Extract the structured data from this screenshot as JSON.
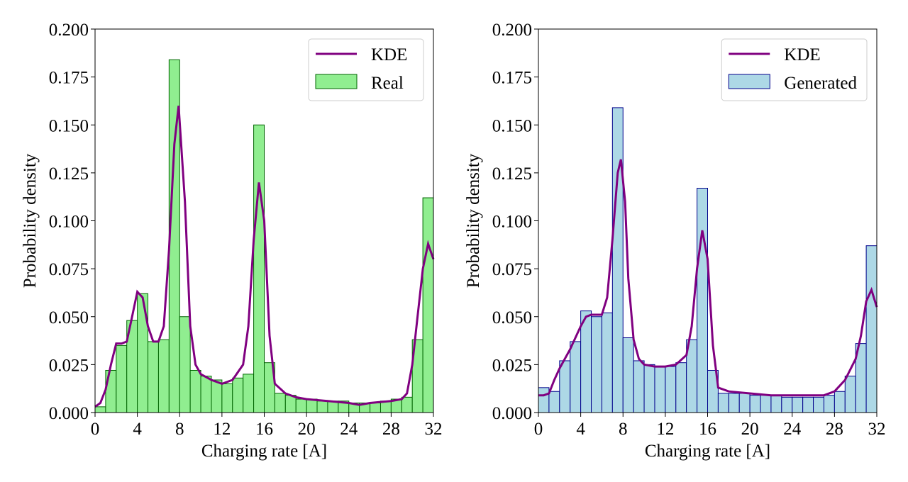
{
  "chart_data": [
    {
      "type": "histogram",
      "xlabel": "Charging rate [A]",
      "ylabel": "Probability density",
      "xlim": [
        0,
        32
      ],
      "ylim": [
        0,
        0.2
      ],
      "xticks": [
        0,
        4,
        8,
        12,
        16,
        20,
        24,
        28,
        32
      ],
      "yticks": [
        {
          "value": 0,
          "label": "0.000"
        },
        {
          "value": 0.025,
          "label": "0.025"
        },
        {
          "value": 0.05,
          "label": "0.050"
        },
        {
          "value": 0.075,
          "label": "0.075"
        },
        {
          "value": 0.1,
          "label": "0.100"
        },
        {
          "value": 0.125,
          "label": "0.125"
        },
        {
          "value": 0.15,
          "label": "0.150"
        },
        {
          "value": 0.175,
          "label": "0.175"
        },
        {
          "value": 0.2,
          "label": "0.200"
        }
      ],
      "legend": "upper right",
      "histogram": {
        "name": "Real",
        "color": "#90ee90",
        "edgecolor": "#006400",
        "bins": [
          0,
          1,
          2,
          3,
          4,
          5,
          6,
          7,
          8,
          9,
          10,
          11,
          12,
          13,
          14,
          15,
          16,
          17,
          18,
          19,
          20,
          21,
          22,
          23,
          24,
          25,
          26,
          27,
          28,
          29,
          30,
          31,
          32
        ],
        "values": [
          0.003,
          0.022,
          0.035,
          0.048,
          0.062,
          0.037,
          0.038,
          0.184,
          0.05,
          0.022,
          0.019,
          0.017,
          0.015,
          0.018,
          0.02,
          0.15,
          0.026,
          0.01,
          0.009,
          0.007,
          0.007,
          0.006,
          0.006,
          0.006,
          0.005,
          0.005,
          0.005,
          0.006,
          0.007,
          0.008,
          0.038,
          0.112
        ]
      },
      "kde": {
        "name": "KDE",
        "color": "#800080",
        "x": [
          0,
          0.5,
          1,
          1.5,
          2,
          2.5,
          3,
          3.5,
          4,
          4.5,
          5,
          5.5,
          6,
          6.5,
          7,
          7.5,
          7.9,
          8.5,
          9,
          9.5,
          10,
          11,
          12,
          13,
          14,
          14.5,
          15,
          15.5,
          16,
          16.5,
          17,
          18,
          19,
          20,
          22,
          24,
          25,
          26,
          28,
          29,
          29.5,
          30,
          30.5,
          31,
          31.5,
          32
        ],
        "values": [
          0.003,
          0.005,
          0.012,
          0.025,
          0.036,
          0.036,
          0.037,
          0.05,
          0.063,
          0.06,
          0.045,
          0.037,
          0.037,
          0.045,
          0.085,
          0.14,
          0.16,
          0.11,
          0.045,
          0.025,
          0.02,
          0.017,
          0.015,
          0.017,
          0.025,
          0.045,
          0.09,
          0.12,
          0.1,
          0.04,
          0.015,
          0.01,
          0.008,
          0.007,
          0.006,
          0.005,
          0.004,
          0.005,
          0.006,
          0.007,
          0.01,
          0.025,
          0.05,
          0.075,
          0.088,
          0.08
        ]
      }
    },
    {
      "type": "histogram",
      "xlabel": "Charging rate [A]",
      "ylabel": "Probability density",
      "xlim": [
        0,
        32
      ],
      "ylim": [
        0,
        0.2
      ],
      "xticks": [
        0,
        4,
        8,
        12,
        16,
        20,
        24,
        28,
        32
      ],
      "yticks": [
        {
          "value": 0,
          "label": "0.000"
        },
        {
          "value": 0.025,
          "label": "0.025"
        },
        {
          "value": 0.05,
          "label": "0.050"
        },
        {
          "value": 0.075,
          "label": "0.075"
        },
        {
          "value": 0.1,
          "label": "0.100"
        },
        {
          "value": 0.125,
          "label": "0.125"
        },
        {
          "value": 0.15,
          "label": "0.150"
        },
        {
          "value": 0.175,
          "label": "0.175"
        },
        {
          "value": 0.2,
          "label": "0.200"
        }
      ],
      "legend": "upper right",
      "histogram": {
        "name": "Generated",
        "color": "#add8e6",
        "edgecolor": "#00008b",
        "bins": [
          0,
          1,
          2,
          3,
          4,
          5,
          6,
          7,
          8,
          9,
          10,
          11,
          12,
          13,
          14,
          15,
          16,
          17,
          18,
          19,
          20,
          21,
          22,
          23,
          24,
          25,
          26,
          27,
          28,
          29,
          30,
          31,
          32
        ],
        "values": [
          0.013,
          0.011,
          0.027,
          0.037,
          0.053,
          0.05,
          0.052,
          0.159,
          0.039,
          0.027,
          0.025,
          0.024,
          0.024,
          0.026,
          0.038,
          0.117,
          0.022,
          0.01,
          0.01,
          0.01,
          0.009,
          0.009,
          0.009,
          0.008,
          0.008,
          0.008,
          0.008,
          0.009,
          0.011,
          0.019,
          0.036,
          0.087
        ]
      },
      "kde": {
        "name": "KDE",
        "color": "#800080",
        "x": [
          0,
          0.5,
          1,
          1.5,
          2,
          3,
          4,
          4.5,
          5,
          6,
          6.5,
          7,
          7.5,
          7.8,
          8.2,
          8.5,
          9,
          9.5,
          10,
          11,
          12,
          13,
          14,
          14.5,
          15,
          15.5,
          16,
          16.5,
          17,
          18,
          20,
          22,
          24,
          26,
          27,
          28,
          29,
          30,
          30.5,
          31,
          31.5,
          32
        ],
        "values": [
          0.009,
          0.009,
          0.01,
          0.017,
          0.023,
          0.033,
          0.045,
          0.05,
          0.051,
          0.051,
          0.06,
          0.09,
          0.125,
          0.132,
          0.11,
          0.07,
          0.038,
          0.028,
          0.025,
          0.024,
          0.024,
          0.025,
          0.03,
          0.045,
          0.075,
          0.095,
          0.08,
          0.035,
          0.013,
          0.011,
          0.01,
          0.009,
          0.009,
          0.009,
          0.009,
          0.011,
          0.017,
          0.028,
          0.04,
          0.058,
          0.064,
          0.055
        ]
      }
    }
  ]
}
